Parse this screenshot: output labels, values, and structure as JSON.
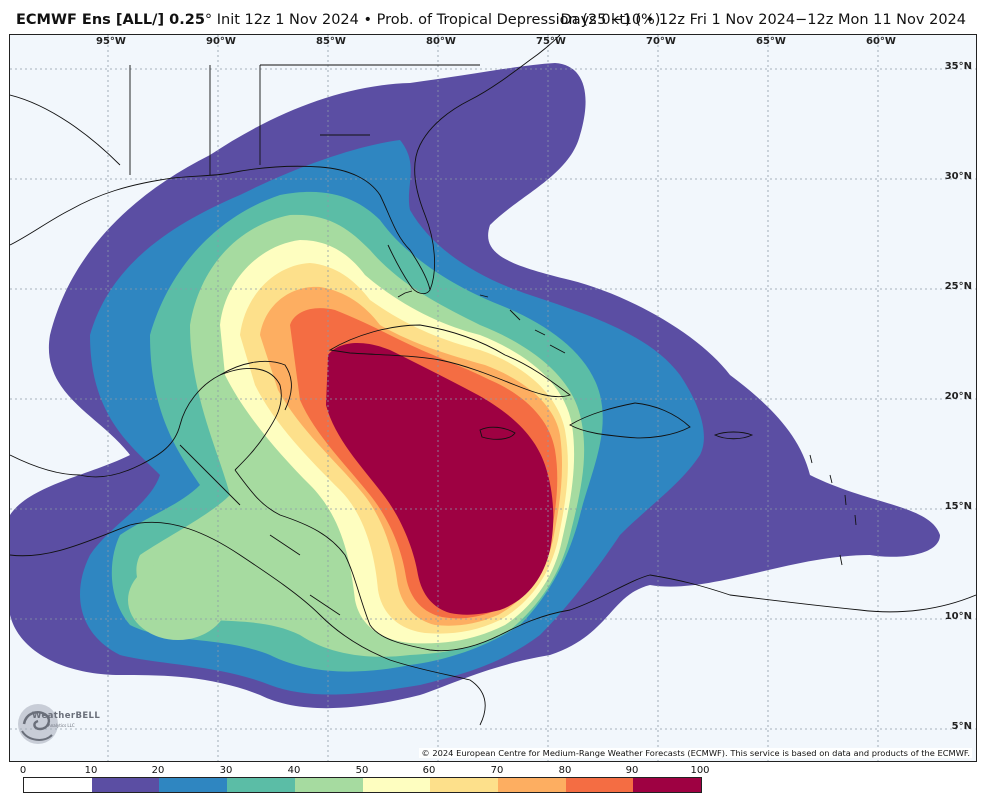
{
  "header": {
    "model": "ECMWF Ens [ALL/] 0.25",
    "degree": "°",
    "init": " Init 12z 1 Nov 2024 • Prob. of Tropical Depression (25 kt) (%)",
    "valid": "Days 0−10 • 12z Fri 1 Nov 2024−12z Mon 11 Nov 2024"
  },
  "map": {
    "lon_labels": [
      "95°W",
      "90°W",
      "85°W",
      "80°W",
      "75°W",
      "70°W",
      "65°W",
      "60°W"
    ],
    "lat_labels": [
      "35°N",
      "30°N",
      "25°N",
      "20°N",
      "15°N",
      "10°N",
      "5°N"
    ],
    "copyright": "© 2024 European Centre for Medium-Range Weather Forecasts (ECMWF). This service is based on data and products of the ECMWF.",
    "logo": {
      "name": "WeatherBELL",
      "tagline": "Analytics LLC"
    }
  },
  "colorbar": {
    "ticks": [
      "0",
      "10",
      "20",
      "30",
      "40",
      "50",
      "60",
      "70",
      "80",
      "90",
      "100"
    ],
    "colors": [
      "#ffffff",
      "#5b4ea3",
      "#2f86c1",
      "#5bbda6",
      "#a6dba0",
      "#fefec0",
      "#fde08b",
      "#fdae61",
      "#f46d43",
      "#9e0142"
    ]
  }
}
